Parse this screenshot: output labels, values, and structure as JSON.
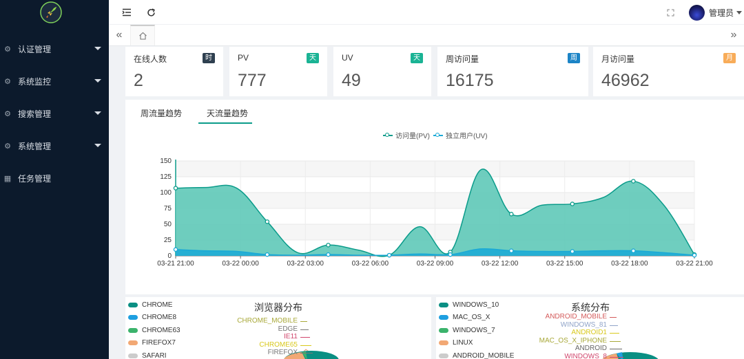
{
  "sidebar": {
    "logo": "rocket-logo",
    "items": [
      {
        "label": "认证管理",
        "icon": "gear-icon",
        "has_caret": true
      },
      {
        "label": "系统监控",
        "icon": "gear-icon",
        "has_caret": true
      },
      {
        "label": "搜索管理",
        "icon": "gear-icon",
        "has_caret": true
      },
      {
        "label": "系统管理",
        "icon": "gear-icon",
        "has_caret": true
      },
      {
        "label": "任务管理",
        "icon": "grid-icon",
        "has_caret": false
      }
    ]
  },
  "header": {
    "user_name": "管理员"
  },
  "tabs": {
    "home_icon": "home-icon"
  },
  "cards": [
    {
      "title": "在线人数",
      "badge": "时",
      "badge_color": "#2f4050",
      "value": "2"
    },
    {
      "title": "PV",
      "badge": "天",
      "badge_color": "#1ab394",
      "value": "777"
    },
    {
      "title": "UV",
      "badge": "天",
      "badge_color": "#1ab394",
      "value": "49"
    },
    {
      "title": "周访问量",
      "badge": "周",
      "badge_color": "#1c84c6",
      "value": "16175"
    },
    {
      "title": "月访问量",
      "badge": "月",
      "badge_color": "#f8ac59",
      "value": "46962"
    }
  ],
  "traffic_panel": {
    "tabs": [
      "周流量趋势",
      "天流量趋势"
    ],
    "active_tab": "天流量趋势"
  },
  "chart_data": {
    "type": "area",
    "x": [
      "03-21 21:00",
      "03-22 00:00",
      "03-22 03:00",
      "03-22 06:00",
      "03-22 09:00",
      "03-22 12:00",
      "03-22 15:00",
      "03-22 18:00",
      "03-22 21:00"
    ],
    "xtick_labels": [
      "03-21 21:00",
      "03-22 00:00",
      "03-22 03:00",
      "03-22 06:00",
      "03-22 09:00",
      "03-22 12:00",
      "03-22 15:00",
      "03-22 18:00",
      "03-22 21:00"
    ],
    "ylim": [
      0,
      150
    ],
    "yticks": [
      0,
      25,
      50,
      75,
      100,
      125,
      150
    ],
    "grid": true,
    "legend_position": "top-center",
    "series": [
      {
        "name": "访问量(PV)",
        "color": "#0a9b8a",
        "fill": "#5fc9b8",
        "points": [
          [
            0,
            107
          ],
          [
            1,
            108
          ],
          [
            2,
            107
          ],
          [
            3,
            54
          ],
          [
            4,
            5
          ],
          [
            5,
            17
          ],
          [
            6,
            9
          ],
          [
            7,
            1
          ],
          [
            8,
            46
          ],
          [
            9,
            6
          ],
          [
            10,
            136
          ],
          [
            11,
            66
          ],
          [
            12,
            80
          ],
          [
            13,
            82
          ],
          [
            14,
            92
          ],
          [
            15,
            118
          ],
          [
            16,
            80
          ],
          [
            17,
            2
          ]
        ],
        "marker_indices": [
          0,
          3,
          5,
          7,
          9,
          11,
          13,
          15,
          17
        ]
      },
      {
        "name": "独立用户(UV)",
        "color": "#1aa9d6",
        "fill": "#1aa9d6",
        "points": [
          [
            0,
            10
          ],
          [
            1,
            8
          ],
          [
            2,
            7
          ],
          [
            3,
            2
          ],
          [
            4,
            1
          ],
          [
            5,
            2
          ],
          [
            6,
            1
          ],
          [
            7,
            1
          ],
          [
            8,
            3
          ],
          [
            9,
            2
          ],
          [
            10,
            11
          ],
          [
            11,
            8
          ],
          [
            12,
            7
          ],
          [
            13,
            7
          ],
          [
            14,
            8
          ],
          [
            15,
            8
          ],
          [
            16,
            5
          ],
          [
            17,
            1
          ]
        ],
        "marker_indices": [
          0,
          3,
          5,
          7,
          9,
          11,
          13,
          15,
          17
        ]
      }
    ]
  },
  "browser_panel": {
    "title": "浏览器分布",
    "legend": [
      {
        "label": "CHROME",
        "color": "#0a8f83"
      },
      {
        "label": "CHROME8",
        "color": "#1e9fe0"
      },
      {
        "label": "CHROME63",
        "color": "#3bb36c"
      },
      {
        "label": "FIREFOX7",
        "color": "#f2a874"
      },
      {
        "label": "SAFARI",
        "color": "#cccccc"
      }
    ],
    "pie_labels": [
      {
        "label": "CHROME_MOBILE",
        "color": "#a8a838"
      },
      {
        "label": "EDGE",
        "color": "#777777"
      },
      {
        "label": "IE11",
        "color": "#d0456c"
      },
      {
        "label": "CHROME65",
        "color": "#d8c81a"
      },
      {
        "label": "FIREFOX",
        "color": "#777777"
      }
    ]
  },
  "os_panel": {
    "title": "系统分布",
    "legend": [
      {
        "label": "WINDOWS_10",
        "color": "#0a8f83"
      },
      {
        "label": "MAC_OS_X",
        "color": "#1e9fe0"
      },
      {
        "label": "WINDOWS_7",
        "color": "#3bb36c"
      },
      {
        "label": "LINUX",
        "color": "#f2a874"
      },
      {
        "label": "ANDROID_MOBILE",
        "color": "#cccccc"
      }
    ],
    "pie_labels": [
      {
        "label": "ANDROID_MOBILE",
        "color": "#d45a5a"
      },
      {
        "label": "WINDOWS_81",
        "color": "#8fa3c8"
      },
      {
        "label": "ANDROID1",
        "color": "#d8c81a"
      },
      {
        "label": "MAC_OS_X_IPHONE",
        "color": "#a8a838"
      },
      {
        "label": "ANDROID",
        "color": "#666666"
      },
      {
        "label": "WINDOWS_8",
        "color": "#d0456c"
      }
    ]
  }
}
